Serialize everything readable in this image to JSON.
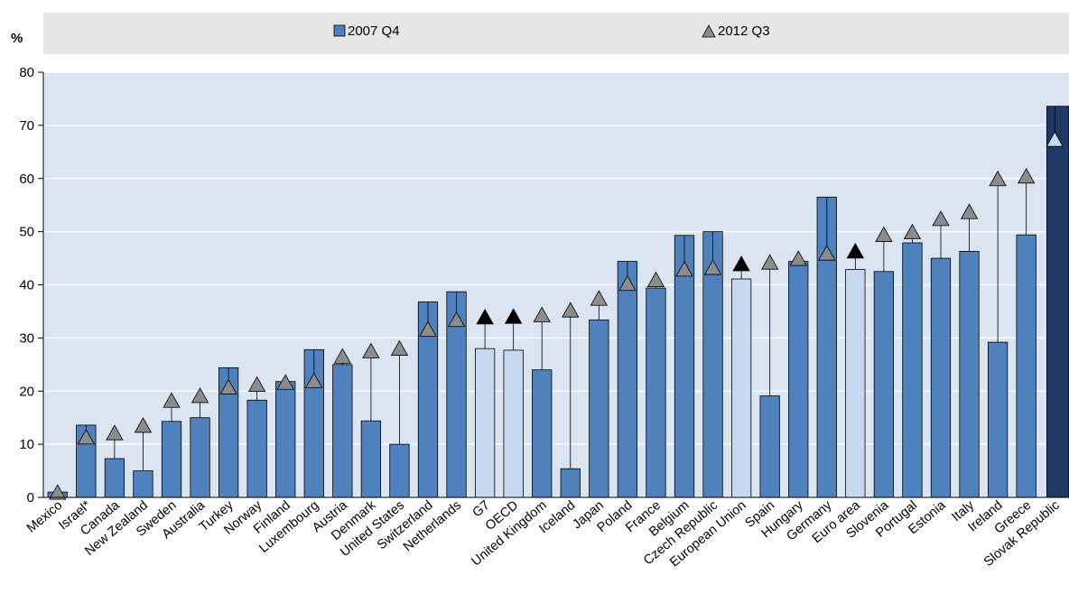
{
  "chart_data": {
    "type": "bar",
    "ylabel": "%",
    "ylim": [
      0,
      80
    ],
    "yticks": [
      0,
      10,
      20,
      30,
      40,
      50,
      60,
      70,
      80
    ],
    "legend_position": "top",
    "series": [
      {
        "name": "2007 Q4",
        "marker": "bar",
        "values": [
          1,
          13.6,
          7.3,
          5,
          14.3,
          15,
          24.4,
          18.3,
          21.8,
          27.8,
          25,
          14.4,
          10,
          36.8,
          38.7,
          28,
          27.7,
          24,
          5.4,
          33.4,
          44.4,
          39.4,
          49.3,
          50,
          41.1,
          19.1,
          44.4,
          56.5,
          42.9,
          42.5,
          47.9,
          45,
          46.3,
          29.2,
          49.4,
          73.6
        ]
      },
      {
        "name": "2012 Q3",
        "marker": "triangle",
        "values": [
          1,
          11.4,
          12.2,
          13.6,
          18.3,
          19.2,
          20.8,
          21.3,
          21.7,
          22,
          26.6,
          27.6,
          28.1,
          31.7,
          33.5,
          34,
          34.1,
          34.4,
          35.3,
          37.5,
          40.3,
          41,
          43,
          43.3,
          44,
          44.3,
          45,
          46,
          46.4,
          49.5,
          50,
          52.5,
          53.8,
          60,
          60.5,
          67.4
        ]
      }
    ],
    "categories": [
      "Mexico",
      "Israel*",
      "Canada",
      "New Zealand",
      "Sweden",
      "Australia",
      "Turkey",
      "Norway",
      "Finland",
      "Luxembourg",
      "Austria",
      "Denmark",
      "United States",
      "Switzerland",
      "Netherlands",
      "G7",
      "OECD",
      "United Kingdom",
      "Iceland",
      "Japan",
      "Poland",
      "France",
      "Belgium",
      "Czech Republic",
      "European Union",
      "Spain",
      "Hungary",
      "Germany",
      "Euro area",
      "Slovenia",
      "Portugal",
      "Estonia",
      "Italy",
      "Ireland",
      "Greece",
      "Slovak Republic"
    ],
    "aggregates": [
      "G7",
      "OECD",
      "European Union",
      "Euro area"
    ],
    "highlight": "Slovak Republic",
    "colors": {
      "bar": "#4f81bd",
      "bar_edge": "#000000",
      "aggregate_bar": "#c6d9f1",
      "highlight_bar": "#1f3864",
      "triangle": "#8c8c8c",
      "aggregate_triangle": "#000000",
      "legend_bg": "#e6e6e6",
      "plot_bg": "#dbe5f1"
    }
  }
}
